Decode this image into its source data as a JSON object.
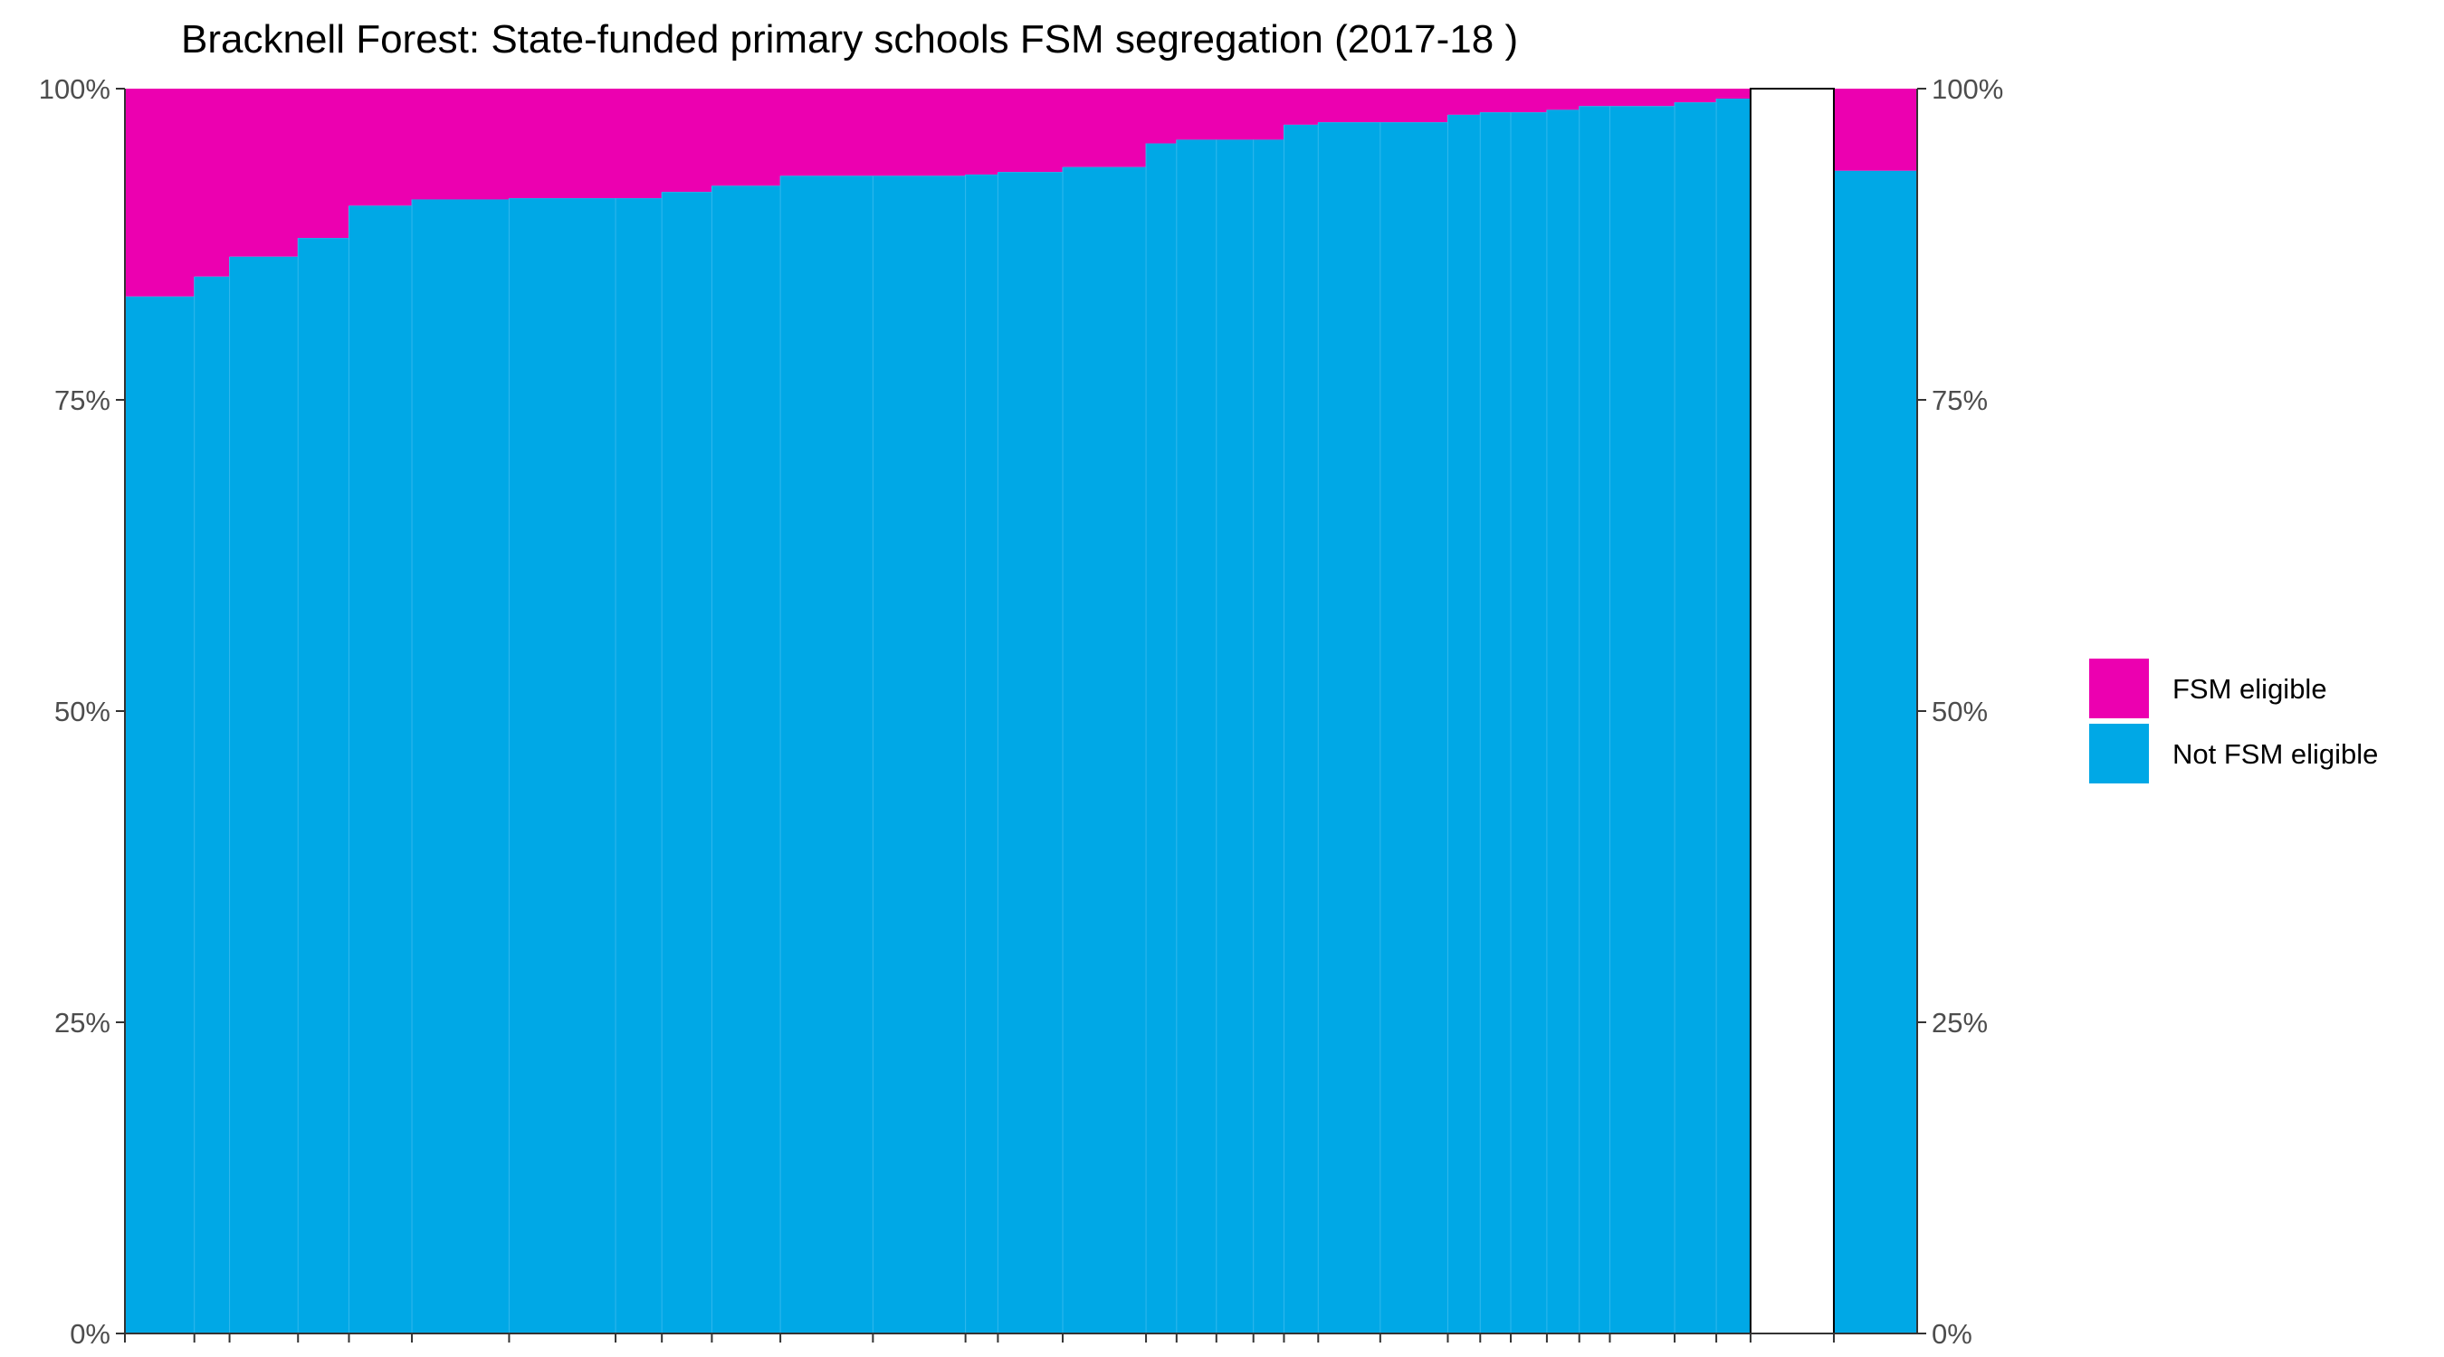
{
  "chart_data": {
    "type": "bar",
    "stacked": true,
    "variable_width": true,
    "title": "Bracknell Forest: State-funded primary schools FSM segregation (2017-18 )",
    "xlabel": "",
    "ylabel": "",
    "ylim": [
      0,
      100
    ],
    "y_ticks": [
      "0%",
      "25%",
      "50%",
      "75%",
      "100%"
    ],
    "y_tick_values": [
      0,
      25,
      50,
      75,
      100
    ],
    "secondary_y_axis": true,
    "grid": false,
    "legend_position": "right",
    "colors": {
      "fsm": "#ec00b0",
      "not_fsm": "#00a8e6"
    },
    "series": [
      {
        "name": "FSM eligible",
        "key": "fsm"
      },
      {
        "name": "Not FSM eligible",
        "key": "not_fsm"
      }
    ],
    "schools": [
      {
        "width": 75,
        "not_fsm": 83.3
      },
      {
        "width": 38,
        "not_fsm": 84.9
      },
      {
        "width": 74,
        "not_fsm": 86.5
      },
      {
        "width": 55,
        "not_fsm": 88.0
      },
      {
        "width": 68,
        "not_fsm": 90.6
      },
      {
        "width": 105,
        "not_fsm": 91.1
      },
      {
        "width": 115,
        "not_fsm": 91.2
      },
      {
        "width": 50,
        "not_fsm": 91.2
      },
      {
        "width": 54,
        "not_fsm": 91.7
      },
      {
        "width": 74,
        "not_fsm": 92.2
      },
      {
        "width": 100,
        "not_fsm": 93.0
      },
      {
        "width": 100,
        "not_fsm": 93.0
      },
      {
        "width": 35,
        "not_fsm": 93.1
      },
      {
        "width": 70,
        "not_fsm": 93.3
      },
      {
        "width": 90,
        "not_fsm": 93.7
      },
      {
        "width": 33,
        "not_fsm": 95.6
      },
      {
        "width": 43,
        "not_fsm": 95.9
      },
      {
        "width": 40,
        "not_fsm": 95.9
      },
      {
        "width": 33,
        "not_fsm": 95.9
      },
      {
        "width": 37,
        "not_fsm": 97.1
      },
      {
        "width": 67,
        "not_fsm": 97.3
      },
      {
        "width": 73,
        "not_fsm": 97.3
      },
      {
        "width": 35,
        "not_fsm": 97.9
      },
      {
        "width": 33,
        "not_fsm": 98.1
      },
      {
        "width": 39,
        "not_fsm": 98.1
      },
      {
        "width": 35,
        "not_fsm": 98.3
      },
      {
        "width": 33,
        "not_fsm": 98.6
      },
      {
        "width": 70,
        "not_fsm": 98.6
      },
      {
        "width": 45,
        "not_fsm": 98.9
      },
      {
        "width": 37,
        "not_fsm": 99.2
      }
    ],
    "empty_gap_width": 90,
    "total_bar": {
      "width": 90,
      "not_fsm": 93.4
    }
  }
}
